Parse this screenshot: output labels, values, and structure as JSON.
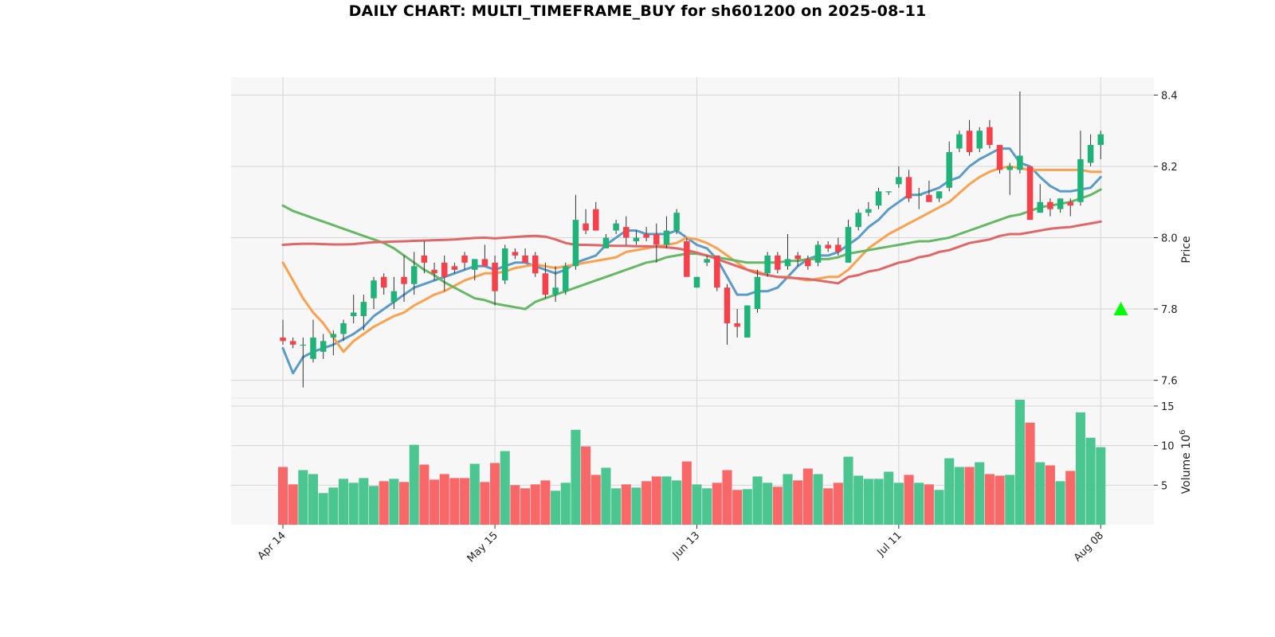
{
  "chart_data": {
    "type": "candlestick",
    "title": "DAILY CHART: MULTI_TIMEFRAME_BUY for sh601200 on 2025-08-11",
    "ylabel_price": "Price",
    "ylabel_volume": "Volume",
    "volume_exponent": "6",
    "price_ylim": [
      7.55,
      8.45
    ],
    "price_ticks": [
      "8.4",
      "8.2",
      "8.0",
      "7.8",
      "7.6"
    ],
    "volume_ylim": [
      0,
      16
    ],
    "volume_ticks": [
      "15",
      "10",
      "5"
    ],
    "x_tick_labels": [
      "Apr 14",
      "May 15",
      "Jun 13",
      "Jul 11",
      "Aug 08"
    ],
    "x_tick_indices": [
      0,
      21,
      41,
      61,
      81
    ],
    "grid": true,
    "colors": {
      "up": "#1fb37a",
      "down": "#f5414b",
      "volume_up": "#4bc690",
      "volume_down": "#f96868",
      "ma_blue": "#5b9bc8",
      "ma_orange": "#f9a14e",
      "ma_green": "#67b866",
      "ma_red": "#e06767",
      "signal": "#00ff00"
    },
    "candles": [
      [
        7.72,
        7.77,
        7.7,
        7.71
      ],
      [
        7.71,
        7.72,
        7.69,
        7.7
      ],
      [
        7.7,
        7.72,
        7.58,
        7.7
      ],
      [
        7.66,
        7.77,
        7.65,
        7.72
      ],
      [
        7.68,
        7.73,
        7.66,
        7.71
      ],
      [
        7.72,
        7.74,
        7.67,
        7.73
      ],
      [
        7.73,
        7.77,
        7.71,
        7.76
      ],
      [
        7.78,
        7.84,
        7.76,
        7.79
      ],
      [
        7.78,
        7.84,
        7.74,
        7.82
      ],
      [
        7.83,
        7.89,
        7.8,
        7.88
      ],
      [
        7.89,
        7.9,
        7.84,
        7.86
      ],
      [
        7.82,
        7.89,
        7.8,
        7.85
      ],
      [
        7.89,
        7.95,
        7.82,
        7.87
      ],
      [
        7.87,
        7.96,
        7.84,
        7.92
      ],
      [
        7.95,
        7.99,
        7.9,
        7.93
      ],
      [
        7.91,
        7.93,
        7.88,
        7.9
      ],
      [
        7.93,
        7.95,
        7.85,
        7.89
      ],
      [
        7.92,
        7.93,
        7.9,
        7.91
      ],
      [
        7.95,
        7.96,
        7.91,
        7.93
      ],
      [
        7.91,
        7.94,
        7.88,
        7.94
      ],
      [
        7.94,
        7.98,
        7.92,
        7.92
      ],
      [
        7.93,
        7.95,
        7.81,
        7.85
      ],
      [
        7.88,
        7.98,
        7.87,
        7.97
      ],
      [
        7.96,
        7.97,
        7.94,
        7.95
      ],
      [
        7.95,
        7.97,
        7.93,
        7.93
      ],
      [
        7.95,
        7.96,
        7.89,
        7.9
      ],
      [
        7.9,
        7.93,
        7.83,
        7.84
      ],
      [
        7.84,
        7.92,
        7.82,
        7.86
      ],
      [
        7.85,
        7.93,
        7.84,
        7.92
      ],
      [
        7.92,
        8.12,
        7.91,
        8.05
      ],
      [
        8.04,
        8.08,
        8.01,
        8.02
      ],
      [
        8.08,
        8.1,
        8.02,
        8.02
      ],
      [
        7.97,
        8.01,
        7.97,
        8.0
      ],
      [
        8.02,
        8.05,
        8.01,
        8.04
      ],
      [
        8.03,
        8.06,
        7.98,
        8.0
      ],
      [
        7.99,
        8.02,
        7.98,
        8.0
      ],
      [
        8.01,
        8.03,
        7.99,
        8.0
      ],
      [
        8.01,
        8.04,
        7.93,
        7.98
      ],
      [
        7.98,
        8.06,
        7.97,
        8.02
      ],
      [
        8.02,
        8.08,
        8.01,
        8.07
      ],
      [
        7.99,
        8.0,
        7.89,
        7.89
      ],
      [
        7.86,
        7.89,
        7.86,
        7.89
      ],
      [
        7.93,
        7.95,
        7.92,
        7.94
      ],
      [
        7.95,
        7.95,
        7.85,
        7.86
      ],
      [
        7.86,
        7.87,
        7.7,
        7.76
      ],
      [
        7.76,
        7.8,
        7.72,
        7.75
      ],
      [
        7.72,
        7.81,
        7.72,
        7.81
      ],
      [
        7.8,
        7.91,
        7.79,
        7.89
      ],
      [
        7.9,
        7.96,
        7.89,
        7.95
      ],
      [
        7.95,
        7.96,
        7.9,
        7.91
      ],
      [
        7.92,
        8.01,
        7.91,
        7.94
      ],
      [
        7.95,
        7.96,
        7.92,
        7.94
      ],
      [
        7.94,
        7.95,
        7.91,
        7.92
      ],
      [
        7.93,
        7.99,
        7.92,
        7.98
      ],
      [
        7.98,
        7.99,
        7.96,
        7.97
      ],
      [
        7.98,
        8.0,
        7.95,
        7.96
      ],
      [
        7.93,
        8.05,
        7.93,
        8.03
      ],
      [
        8.03,
        8.08,
        8.02,
        8.07
      ],
      [
        8.07,
        8.1,
        8.06,
        8.08
      ],
      [
        8.09,
        8.14,
        8.08,
        8.13
      ],
      [
        8.13,
        8.13,
        8.12,
        8.13
      ],
      [
        8.15,
        8.2,
        8.14,
        8.17
      ],
      [
        8.17,
        8.19,
        8.1,
        8.11
      ],
      [
        8.12,
        8.14,
        8.08,
        8.12
      ],
      [
        8.12,
        8.16,
        8.1,
        8.1
      ],
      [
        8.11,
        8.13,
        8.1,
        8.13
      ],
      [
        8.14,
        8.27,
        8.13,
        8.24
      ],
      [
        8.25,
        8.3,
        8.24,
        8.29
      ],
      [
        8.3,
        8.33,
        8.23,
        8.24
      ],
      [
        8.25,
        8.31,
        8.24,
        8.3
      ],
      [
        8.31,
        8.33,
        8.25,
        8.26
      ],
      [
        8.26,
        8.26,
        8.18,
        8.19
      ],
      [
        8.19,
        8.21,
        8.12,
        8.2
      ],
      [
        8.19,
        8.41,
        8.18,
        8.23
      ],
      [
        8.2,
        8.2,
        8.05,
        8.05
      ],
      [
        8.07,
        8.15,
        8.07,
        8.1
      ],
      [
        8.1,
        8.11,
        8.06,
        8.08
      ],
      [
        8.08,
        8.11,
        8.07,
        8.11
      ],
      [
        8.1,
        8.11,
        8.06,
        8.09
      ],
      [
        8.1,
        8.3,
        8.09,
        8.22
      ],
      [
        8.21,
        8.29,
        8.2,
        8.26
      ],
      [
        8.26,
        8.3,
        8.22,
        8.29
      ]
    ],
    "volume": [
      7.3,
      5.1,
      6.9,
      6.4,
      4.0,
      4.7,
      5.8,
      5.3,
      5.9,
      4.9,
      5.5,
      5.8,
      5.4,
      10.1,
      7.6,
      5.7,
      6.4,
      5.9,
      5.9,
      7.7,
      5.4,
      7.8,
      9.3,
      5.0,
      4.6,
      5.1,
      5.6,
      4.3,
      5.3,
      12.0,
      9.9,
      6.3,
      7.2,
      4.6,
      5.1,
      4.7,
      5.5,
      6.1,
      6.1,
      5.6,
      8.0,
      5.1,
      4.6,
      5.3,
      6.9,
      4.4,
      4.5,
      6.1,
      5.3,
      4.8,
      6.4,
      5.6,
      7.1,
      6.4,
      4.6,
      5.3,
      8.6,
      6.2,
      5.8,
      5.8,
      6.7,
      5.3,
      6.3,
      5.3,
      5.1,
      4.4,
      8.4,
      7.3,
      7.3,
      7.9,
      6.4,
      6.2,
      6.3,
      15.8,
      12.9,
      7.9,
      7.5,
      5.5,
      6.8,
      14.2,
      11.0,
      9.8
    ],
    "moving_averages": [
      {
        "color_key": "ma_blue",
        "values": [
          7.69,
          7.62,
          7.665,
          7.68,
          7.69,
          7.7,
          7.715,
          7.73,
          7.75,
          7.78,
          7.8,
          7.82,
          7.84,
          7.86,
          7.87,
          7.88,
          7.89,
          7.9,
          7.91,
          7.92,
          7.92,
          7.91,
          7.92,
          7.93,
          7.93,
          7.92,
          7.91,
          7.9,
          7.91,
          7.93,
          7.94,
          7.95,
          7.98,
          8.0,
          8.02,
          8.02,
          8.01,
          8.01,
          8.01,
          8.02,
          8.0,
          7.98,
          7.97,
          7.94,
          7.89,
          7.84,
          7.84,
          7.85,
          7.85,
          7.86,
          7.89,
          7.92,
          7.94,
          7.95,
          7.95,
          7.96,
          7.98,
          8.0,
          8.03,
          8.05,
          8.08,
          8.1,
          8.12,
          8.12,
          8.13,
          8.14,
          8.16,
          8.17,
          8.2,
          8.22,
          8.235,
          8.25,
          8.25,
          8.21,
          8.2,
          8.17,
          8.145,
          8.13,
          8.13,
          8.135,
          8.14,
          8.17
        ]
      },
      {
        "color_key": "ma_orange",
        "values": [
          7.93,
          7.88,
          7.83,
          7.79,
          7.76,
          7.72,
          7.68,
          7.71,
          7.73,
          7.75,
          7.765,
          7.78,
          7.79,
          7.81,
          7.825,
          7.84,
          7.85,
          7.865,
          7.88,
          7.89,
          7.9,
          7.9,
          7.905,
          7.915,
          7.92,
          7.925,
          7.92,
          7.915,
          7.92,
          7.925,
          7.93,
          7.935,
          7.94,
          7.945,
          7.96,
          7.965,
          7.97,
          7.975,
          7.98,
          7.985,
          8.0,
          7.995,
          7.985,
          7.97,
          7.95,
          7.93,
          7.91,
          7.905,
          7.895,
          7.89,
          7.89,
          7.885,
          7.88,
          7.885,
          7.89,
          7.89,
          7.91,
          7.94,
          7.97,
          7.99,
          8.01,
          8.025,
          8.04,
          8.055,
          8.07,
          8.085,
          8.1,
          8.125,
          8.15,
          8.17,
          8.185,
          8.195,
          8.2,
          8.195,
          8.19,
          8.19,
          8.19,
          8.19,
          8.19,
          8.19,
          8.185,
          8.185
        ]
      },
      {
        "color_key": "ma_green",
        "values": [
          8.09,
          8.075,
          8.065,
          8.055,
          8.045,
          8.035,
          8.025,
          8.015,
          8.005,
          7.995,
          7.985,
          7.97,
          7.95,
          7.93,
          7.91,
          7.895,
          7.875,
          7.86,
          7.845,
          7.83,
          7.825,
          7.815,
          7.81,
          7.805,
          7.8,
          7.82,
          7.83,
          7.84,
          7.85,
          7.86,
          7.87,
          7.88,
          7.89,
          7.9,
          7.91,
          7.92,
          7.93,
          7.935,
          7.945,
          7.95,
          7.955,
          7.955,
          7.95,
          7.945,
          7.94,
          7.935,
          7.93,
          7.93,
          7.93,
          7.93,
          7.935,
          7.935,
          7.94,
          7.94,
          7.94,
          7.945,
          7.955,
          7.96,
          7.965,
          7.97,
          7.975,
          7.98,
          7.985,
          7.99,
          7.99,
          7.995,
          8.0,
          8.01,
          8.02,
          8.03,
          8.04,
          8.05,
          8.06,
          8.065,
          8.075,
          8.085,
          8.09,
          8.095,
          8.1,
          8.11,
          8.12,
          8.135
        ]
      },
      {
        "color_key": "ma_red",
        "values": [
          7.98,
          7.982,
          7.983,
          7.983,
          7.982,
          7.981,
          7.981,
          7.982,
          7.985,
          7.987,
          7.988,
          7.989,
          7.99,
          7.991,
          7.992,
          7.993,
          7.994,
          7.995,
          7.997,
          7.999,
          8.0,
          7.998,
          8.0,
          8.002,
          8.004,
          8.005,
          8.003,
          7.995,
          7.985,
          7.98,
          7.98,
          7.979,
          7.978,
          7.977,
          7.977,
          7.976,
          7.976,
          7.975,
          7.973,
          7.97,
          7.965,
          7.958,
          7.95,
          7.94,
          7.93,
          7.92,
          7.91,
          7.9,
          7.895,
          7.89,
          7.888,
          7.886,
          7.884,
          7.88,
          7.876,
          7.872,
          7.89,
          7.895,
          7.905,
          7.91,
          7.92,
          7.93,
          7.935,
          7.945,
          7.95,
          7.96,
          7.965,
          7.975,
          7.985,
          7.99,
          7.995,
          8.005,
          8.01,
          8.01,
          8.015,
          8.02,
          8.025,
          8.028,
          8.03,
          8.035,
          8.04,
          8.045
        ]
      }
    ],
    "signal": {
      "index": 83,
      "price": 7.8,
      "marker": "triangle-up"
    }
  }
}
